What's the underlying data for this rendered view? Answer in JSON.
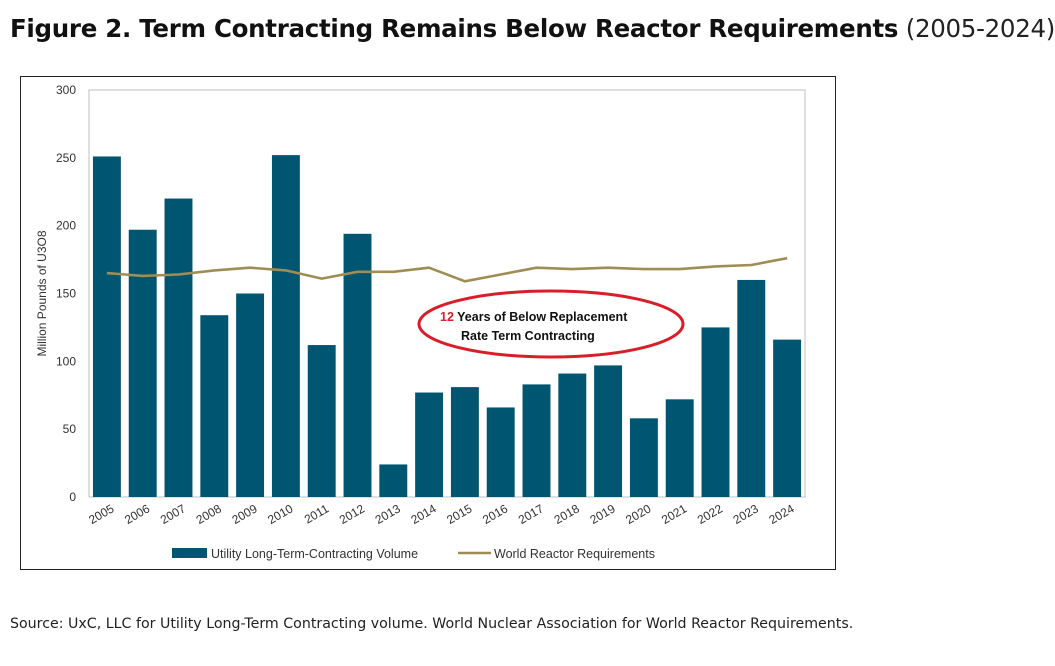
{
  "figure": {
    "title_bold": "Figure 2. Term Contracting Remains Below Reactor Requirements",
    "title_range": "(2005-2024)",
    "source": "Source: UxC, LLC for Utility Long-Term Contracting volume. World Nuclear Association for World Reactor Requirements."
  },
  "annotation": {
    "number": "12",
    "line1": " Years of Below Replacement",
    "line2": "Rate Term Contracting",
    "ellipse_color": "#d91e2a"
  },
  "chart_data": {
    "type": "bar",
    "title": "",
    "xlabel": "",
    "ylabel": "Million Pounds of U3O8",
    "ylim": [
      0,
      300
    ],
    "yticks": [
      0,
      50,
      100,
      150,
      200,
      250,
      300
    ],
    "grid": false,
    "legend_position": "bottom",
    "categories": [
      "2005",
      "2006",
      "2007",
      "2008",
      "2009",
      "2010",
      "2011",
      "2012",
      "2013",
      "2014",
      "2015",
      "2016",
      "2017",
      "2018",
      "2019",
      "2020",
      "2021",
      "2022",
      "2023",
      "2024"
    ],
    "series": [
      {
        "name": "Utility Long-Term-Contracting Volume",
        "type": "bar",
        "color": "#005570",
        "values": [
          251,
          197,
          220,
          134,
          150,
          252,
          112,
          194,
          24,
          77,
          81,
          66,
          83,
          91,
          97,
          58,
          72,
          125,
          160,
          116
        ]
      },
      {
        "name": "World Reactor Requirements",
        "type": "line",
        "color": "#a08d55",
        "values": [
          165,
          163,
          164,
          167,
          169,
          167,
          161,
          166,
          166,
          169,
          159,
          164,
          169,
          168,
          169,
          168,
          168,
          170,
          171,
          176
        ]
      }
    ]
  }
}
